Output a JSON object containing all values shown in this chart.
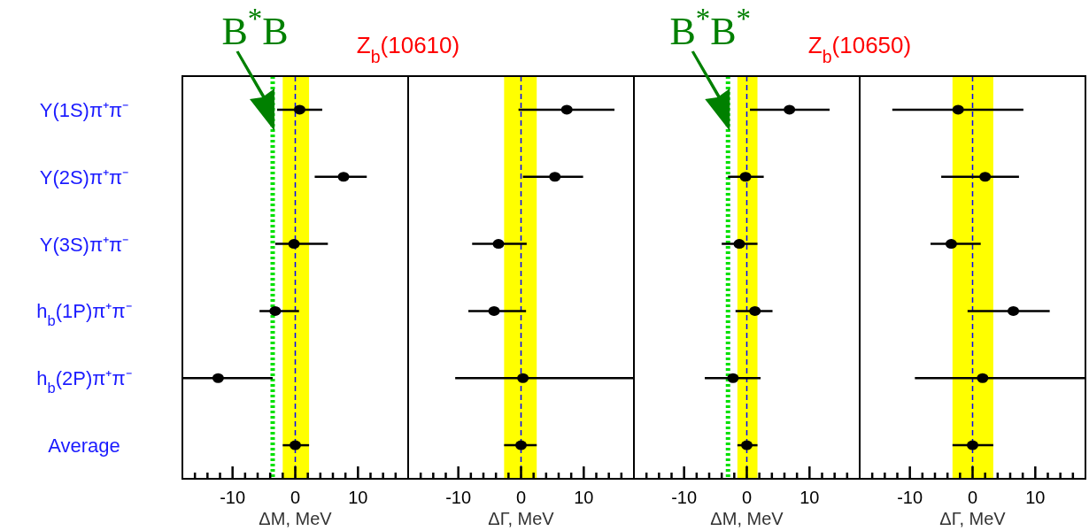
{
  "chart_data": [
    {
      "type": "scatter",
      "orientation": "horizontal",
      "title": "Z$_{b}$(10610)",
      "xlabel": "ΔM, MeV",
      "categories": [
        "Υ(1S)π⁺π⁻",
        "Υ(2S)π⁺π⁻",
        "Υ(3S)π⁺π⁻",
        "h$_{b}$(1P)π⁺π⁻",
        "h$_{b}$(2P)π⁺π⁻",
        "Average"
      ],
      "series": [
        {
          "color": "#000000",
          "values": [
            0.7,
            7.7,
            -0.2,
            -3.2,
            -12.3,
            0
          ],
          "errors": [
            [
              -2.9,
              4.3
            ],
            [
              3.1,
              11.4
            ],
            [
              -3.2,
              5.2
            ],
            [
              -5.7,
              0.6
            ],
            [
              -18,
              -3.6
            ],
            [
              -2,
              2.2
            ]
          ]
        }
      ],
      "marker": "circle",
      "xlim": [
        -18,
        18
      ],
      "xticks": [
        {
          "value": -16,
          "label": null
        },
        {
          "value": -14,
          "label": null
        },
        {
          "value": -12,
          "label": null
        },
        -10,
        {
          "value": -8,
          "label": null
        },
        {
          "value": -6,
          "label": null
        },
        {
          "value": -4,
          "label": null
        },
        {
          "value": -2,
          "label": null
        },
        0,
        {
          "value": 2,
          "label": null
        },
        {
          "value": 4,
          "label": null
        },
        {
          "value": 6,
          "label": null
        },
        {
          "value": 8,
          "label": null
        },
        10,
        {
          "value": 12,
          "label": null
        },
        {
          "value": 14,
          "label": null
        },
        {
          "value": 16,
          "label": null
        }
      ],
      "bands": [
        {
          "axis": "x",
          "from": -2,
          "to": 2.2,
          "color": "#ffff00"
        }
      ],
      "ref_lines": [
        {
          "axis": "x",
          "value": 0,
          "color": "#0000ff",
          "line_style": "dashed"
        },
        {
          "axis": "x",
          "value": -3.6,
          "label": "B$^{*}$B",
          "color": "#00e000",
          "line_style": "dotted"
        }
      ]
    },
    {
      "type": "scatter",
      "orientation": "horizontal",
      "xlabel": "ΔΓ, MeV",
      "tick_labels": "x",
      "series": [
        {
          "color": "#000000",
          "values": [
            7.3,
            5.4,
            -3.6,
            -4.3,
            0.3,
            0
          ],
          "errors": [
            [
              -0.4,
              14.9
            ],
            [
              0.3,
              9.9
            ],
            [
              -7.8,
              0.9
            ],
            [
              -8.4,
              0.8
            ],
            [
              -10.5,
              18
            ],
            [
              -2.7,
              2.5
            ]
          ]
        }
      ],
      "marker": "circle",
      "xlim": [
        -18,
        18
      ],
      "xticks": [
        {
          "value": -16,
          "label": null
        },
        {
          "value": -14,
          "label": null
        },
        {
          "value": -12,
          "label": null
        },
        -10,
        {
          "value": -8,
          "label": null
        },
        {
          "value": -6,
          "label": null
        },
        {
          "value": -4,
          "label": null
        },
        {
          "value": -2,
          "label": null
        },
        0,
        {
          "value": 2,
          "label": null
        },
        {
          "value": 4,
          "label": null
        },
        {
          "value": 6,
          "label": null
        },
        {
          "value": 8,
          "label": null
        },
        10,
        {
          "value": 12,
          "label": null
        },
        {
          "value": 14,
          "label": null
        },
        {
          "value": 16,
          "label": null
        }
      ],
      "bands": [
        {
          "axis": "x",
          "from": -2.7,
          "to": 2.5,
          "color": "#ffff00"
        }
      ],
      "ref_lines": [
        {
          "axis": "x",
          "value": 0,
          "color": "#0000ff",
          "line_style": "dashed"
        }
      ]
    },
    {
      "type": "scatter",
      "orientation": "horizontal",
      "title": "Z$_{b}$(10650)",
      "xlabel": "ΔM, MeV",
      "tick_labels": "x",
      "series": [
        {
          "color": "#000000",
          "values": [
            6.8,
            -0.2,
            -1.2,
            1.3,
            -2.2,
            0
          ],
          "errors": [
            [
              0.5,
              13.2
            ],
            [
              -3,
              2.7
            ],
            [
              -4,
              1.7
            ],
            [
              -1.8,
              4.1
            ],
            [
              -6.7,
              2.2
            ],
            [
              -1.5,
              1.7
            ]
          ]
        }
      ],
      "marker": "circle",
      "xlim": [
        -18,
        18
      ],
      "xticks": [
        {
          "value": -16,
          "label": null
        },
        {
          "value": -14,
          "label": null
        },
        {
          "value": -12,
          "label": null
        },
        -10,
        {
          "value": -8,
          "label": null
        },
        {
          "value": -6,
          "label": null
        },
        {
          "value": -4,
          "label": null
        },
        {
          "value": -2,
          "label": null
        },
        0,
        {
          "value": 2,
          "label": null
        },
        {
          "value": 4,
          "label": null
        },
        {
          "value": 6,
          "label": null
        },
        {
          "value": 8,
          "label": null
        },
        10,
        {
          "value": 12,
          "label": null
        },
        {
          "value": 14,
          "label": null
        },
        {
          "value": 16,
          "label": null
        }
      ],
      "bands": [
        {
          "axis": "x",
          "from": -1.5,
          "to": 1.7,
          "color": "#ffff00"
        }
      ],
      "ref_lines": [
        {
          "axis": "x",
          "value": 0,
          "color": "#0000ff",
          "line_style": "dashed"
        },
        {
          "axis": "x",
          "value": -3,
          "label": "B$^{*}$B$^{*}$",
          "color": "#00e000",
          "line_style": "dotted"
        }
      ]
    },
    {
      "type": "scatter",
      "orientation": "horizontal",
      "xlabel": "ΔΓ, MeV",
      "tick_labels": "x",
      "series": [
        {
          "color": "#000000",
          "values": [
            -2.3,
            2,
            -3.4,
            6.5,
            1.6,
            0
          ],
          "errors": [
            [
              -12.8,
              8.1
            ],
            [
              -5,
              7.4
            ],
            [
              -6.7,
              1.3
            ],
            [
              -0.8,
              12.3
            ],
            [
              -9.2,
              18
            ],
            [
              -3.2,
              3.3
            ]
          ]
        }
      ],
      "marker": "circle",
      "xlim": [
        -18,
        18
      ],
      "xticks": [
        {
          "value": -16,
          "label": null
        },
        {
          "value": -14,
          "label": null
        },
        {
          "value": -12,
          "label": null
        },
        -10,
        {
          "value": -8,
          "label": null
        },
        {
          "value": -6,
          "label": null
        },
        {
          "value": -4,
          "label": null
        },
        {
          "value": -2,
          "label": null
        },
        0,
        {
          "value": 2,
          "label": null
        },
        {
          "value": 4,
          "label": null
        },
        {
          "value": 6,
          "label": null
        },
        {
          "value": 8,
          "label": null
        },
        10,
        {
          "value": 12,
          "label": null
        },
        {
          "value": 14,
          "label": null
        },
        {
          "value": 16,
          "label": null
        }
      ],
      "bands": [
        {
          "axis": "x",
          "from": -3.2,
          "to": 3.3,
          "color": "#ffff00"
        }
      ],
      "ref_lines": [
        {
          "axis": "x",
          "value": 0,
          "color": "#0000ff",
          "line_style": "dashed"
        }
      ]
    }
  ]
}
